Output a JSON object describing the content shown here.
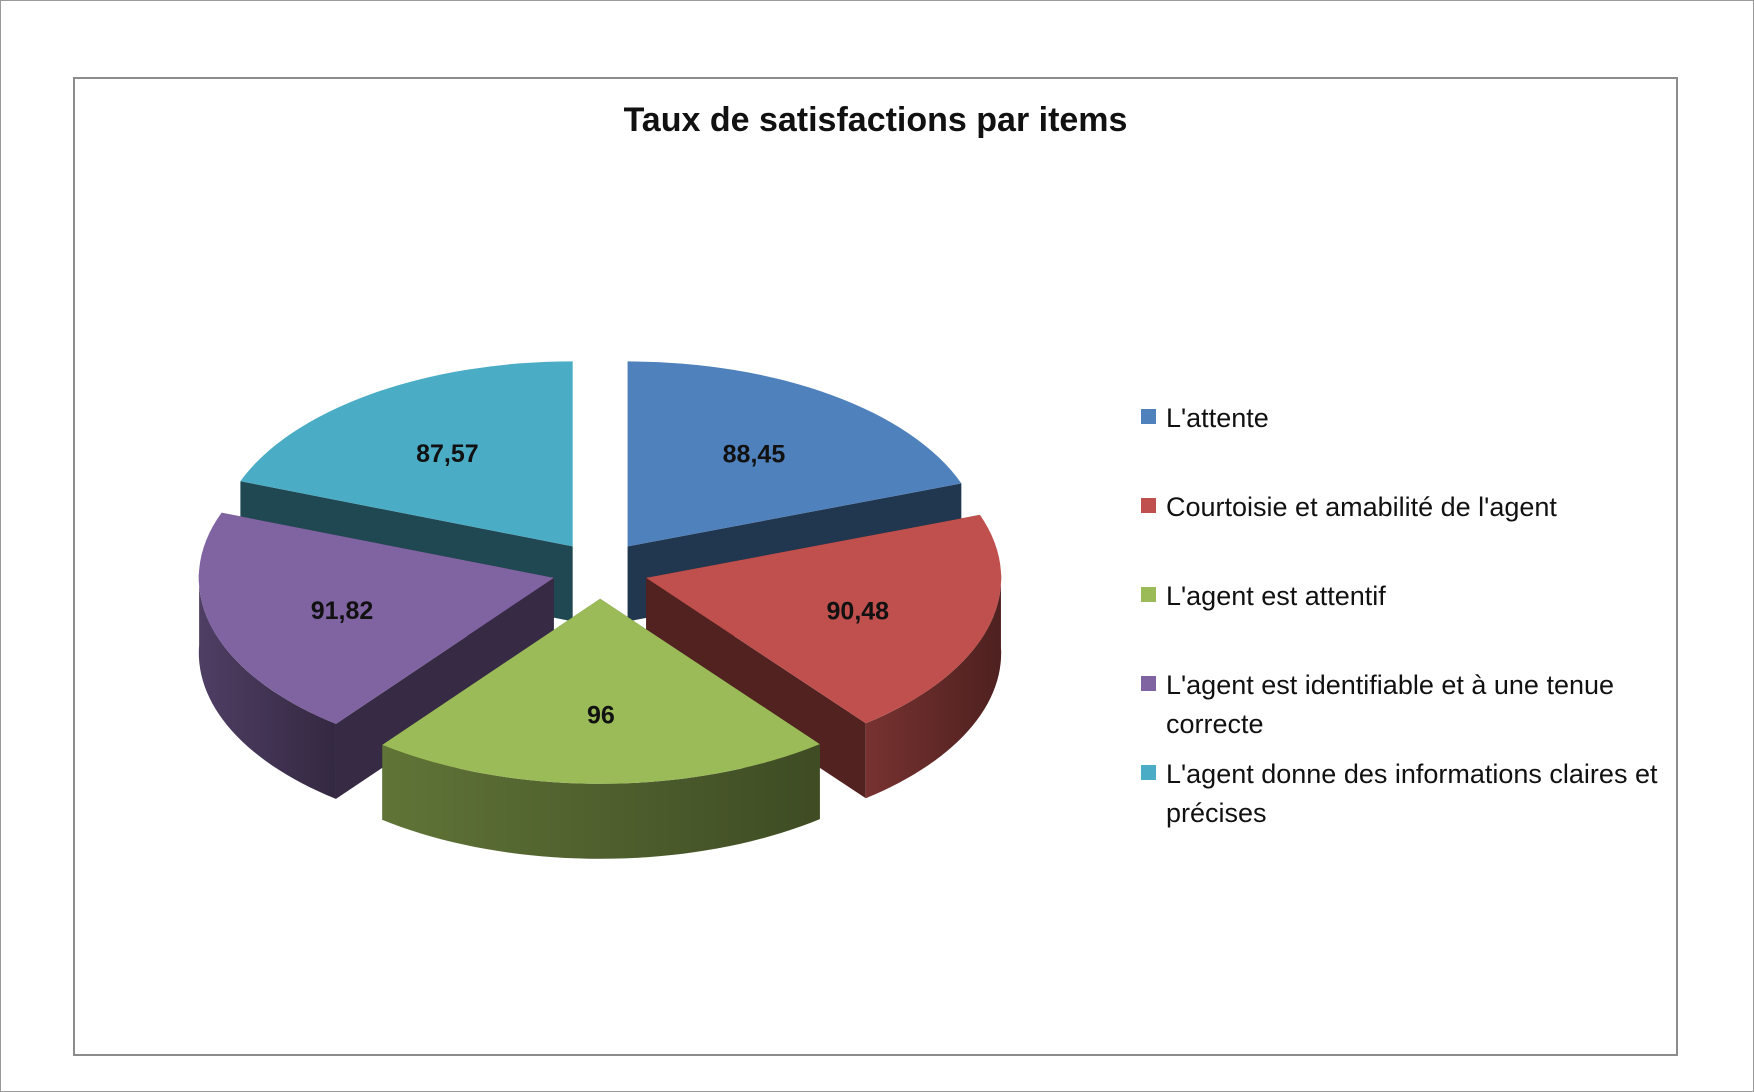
{
  "chart_data": {
    "type": "pie",
    "title": "Taux de satisfactions par items",
    "categories": [
      "L'attente",
      "Courtoisie et amabilité de l'agent",
      "L'agent est attentif",
      "L'agent est identifiable et à une tenue correcte",
      "L'agent donne des informations claires et précises"
    ],
    "values": [
      88.45,
      90.48,
      96,
      91.82,
      87.57
    ],
    "data_labels": [
      "88,45",
      "90,48",
      "96",
      "91,82",
      "87,57"
    ],
    "colors": [
      "#4f81bd",
      "#c0504d",
      "#9bbb59",
      "#8064a2",
      "#4bacc6"
    ],
    "exploded": true,
    "three_d": true,
    "legend": "right"
  }
}
